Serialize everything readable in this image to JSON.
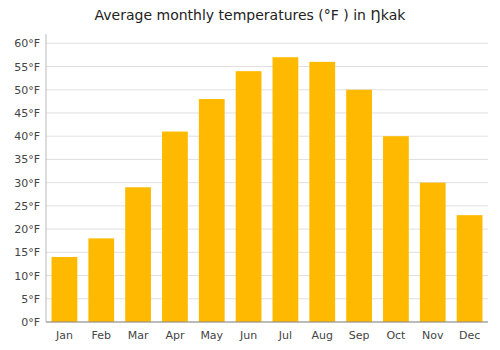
{
  "chart_data": {
    "type": "bar",
    "title": "Average monthly temperatures (°F ) in Ŋkak",
    "categories": [
      "Jan",
      "Feb",
      "Mar",
      "Apr",
      "May",
      "Jun",
      "Jul",
      "Aug",
      "Sep",
      "Oct",
      "Nov",
      "Dec"
    ],
    "values": [
      14,
      18,
      29,
      41,
      48,
      54,
      57,
      56,
      50,
      40,
      30,
      23
    ],
    "color": "#FFBA00",
    "ylim": [
      0,
      62
    ],
    "yticks": [
      {
        "value": 0,
        "label": "0°F"
      },
      {
        "value": 5,
        "label": "5°F"
      },
      {
        "value": 10,
        "label": "10°F"
      },
      {
        "value": 15,
        "label": "15°F"
      },
      {
        "value": 20,
        "label": "20°F"
      },
      {
        "value": 25,
        "label": "25°F"
      },
      {
        "value": 30,
        "label": "30°F"
      },
      {
        "value": 35,
        "label": "35°F"
      },
      {
        "value": 40,
        "label": "40°F"
      },
      {
        "value": 45,
        "label": "45°F"
      },
      {
        "value": 50,
        "label": "50°F"
      },
      {
        "value": 55,
        "label": "55°F"
      },
      {
        "value": 60,
        "label": "60°F"
      }
    ],
    "grid": true
  }
}
